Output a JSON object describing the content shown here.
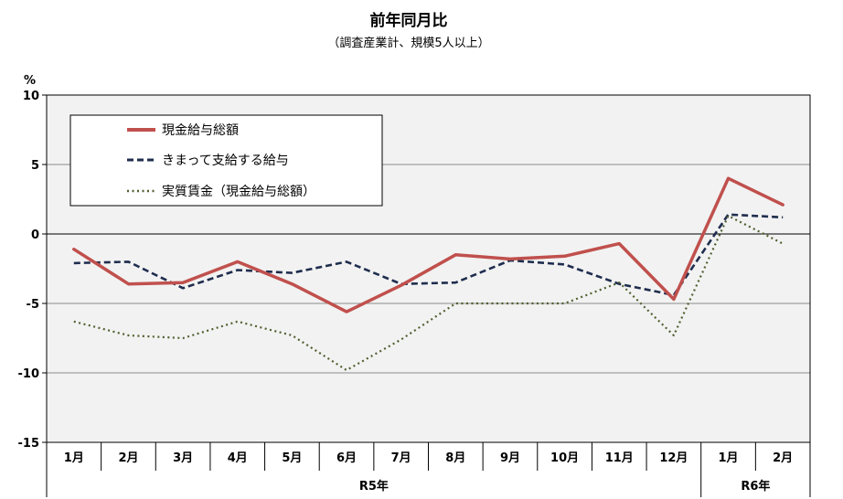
{
  "chart_data": {
    "type": "line",
    "title": "前年同月比",
    "subtitle": "（調査産業計、規模5人以上）",
    "y_unit": "%",
    "ylim": [
      -15,
      10
    ],
    "yticks": [
      10,
      5,
      0,
      -5,
      -10,
      -15
    ],
    "categories": [
      "1月",
      "2月",
      "3月",
      "4月",
      "5月",
      "6月",
      "7月",
      "8月",
      "9月",
      "10月",
      "11月",
      "12月",
      "1月",
      "2月"
    ],
    "year_groups": [
      {
        "label": "R5年",
        "span": 12
      },
      {
        "label": "R6年",
        "span": 2
      }
    ],
    "grid": true,
    "legend_position": "top-left",
    "series": [
      {
        "name": "現金給与総額",
        "style": "solid",
        "color": "#c0504d",
        "values": [
          -1.1,
          -3.6,
          -3.5,
          -2.0,
          -3.6,
          -5.6,
          -3.7,
          -1.5,
          -1.8,
          -1.6,
          -0.7,
          -4.7,
          4.0,
          2.1
        ]
      },
      {
        "name": "きまって支給する給与",
        "style": "dashed",
        "color": "#1f2d4e",
        "values": [
          -2.1,
          -2.0,
          -3.9,
          -2.6,
          -2.8,
          -2.0,
          -3.6,
          -3.5,
          -1.9,
          -2.2,
          -3.6,
          -4.4,
          1.4,
          1.2
        ]
      },
      {
        "name": "実質賃金（現金給与総額）",
        "style": "dotted",
        "color": "#4f5f2f",
        "values": [
          -6.3,
          -7.3,
          -7.5,
          -6.3,
          -7.3,
          -9.8,
          -7.6,
          -5.0,
          -5.0,
          -5.0,
          -3.5,
          -7.3,
          1.3,
          -0.7
        ]
      }
    ]
  }
}
